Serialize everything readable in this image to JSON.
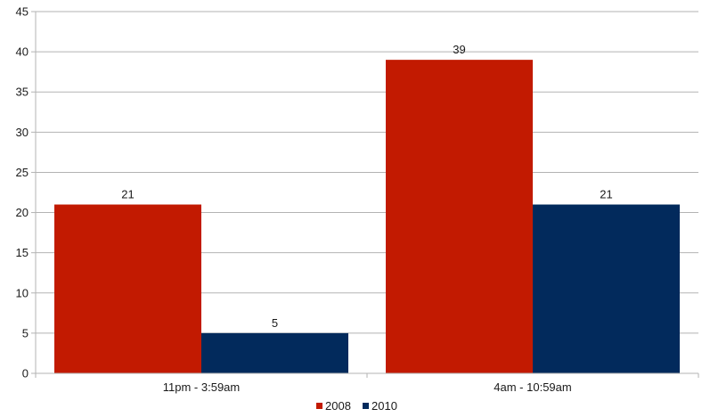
{
  "chart_data": {
    "type": "bar",
    "title": "",
    "xlabel": "",
    "ylabel": "",
    "categories": [
      "11pm - 3:59am",
      "4am - 10:59am"
    ],
    "series": [
      {
        "name": "2008",
        "values": [
          21,
          39
        ],
        "color": "#c21a01"
      },
      {
        "name": "2010",
        "values": [
          5,
          21
        ],
        "color": "#022a5c"
      }
    ],
    "ylim": [
      0,
      45
    ],
    "yticks": [
      0,
      5,
      10,
      15,
      20,
      25,
      30,
      35,
      40,
      45
    ],
    "grid": true,
    "legend_position": "bottom-center",
    "data_labels": true
  }
}
